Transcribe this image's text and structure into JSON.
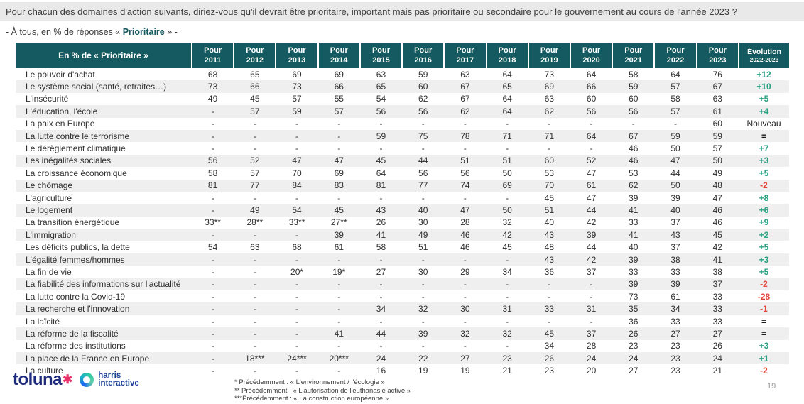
{
  "page": {
    "title": "Pour chacun des domaines d'action suivants, diriez-vous qu'il devrait être prioritaire, important mais pas prioritaire ou secondaire pour le gouvernement au cours de l'année 2023 ?",
    "subtitle_prefix": "- À tous, en % de réponses « ",
    "subtitle_highlight": "Prioritaire",
    "subtitle_suffix": " » -",
    "page_number": "19"
  },
  "chart_data": {
    "type": "table",
    "title": "Pour chacun des domaines d'action suivants, diriez-vous qu'il devrait être prioritaire, important mais pas prioritaire ou secondaire pour le gouvernement au cours de l'année 2023 ?",
    "subtitle": "- À tous, en % de réponses « Prioritaire » -",
    "columns": [
      "En % de « Prioritaire »",
      "Pour 2011",
      "Pour 2012",
      "Pour 2013",
      "Pour 2014",
      "Pour 2015",
      "Pour 2016",
      "Pour 2017",
      "Pour 2018",
      "Pour 2019",
      "Pour 2020",
      "Pour 2021",
      "Pour 2022",
      "Pour 2023",
      "Évolution 2022-2023"
    ],
    "rows": [
      {
        "label": "Le pouvoir d'achat",
        "values": [
          "68",
          "65",
          "69",
          "69",
          "63",
          "59",
          "63",
          "64",
          "73",
          "64",
          "58",
          "64",
          "76"
        ],
        "evolution": "+12"
      },
      {
        "label": "Le système social (santé, retraites…)",
        "values": [
          "73",
          "66",
          "73",
          "66",
          "65",
          "60",
          "67",
          "65",
          "69",
          "66",
          "59",
          "57",
          "67"
        ],
        "evolution": "+10"
      },
      {
        "label": "L'insécurité",
        "values": [
          "49",
          "45",
          "57",
          "55",
          "54",
          "62",
          "67",
          "64",
          "63",
          "60",
          "60",
          "58",
          "63"
        ],
        "evolution": "+5"
      },
      {
        "label": "L'éducation, l'école",
        "values": [
          "-",
          "57",
          "59",
          "57",
          "56",
          "56",
          "62",
          "64",
          "62",
          "56",
          "56",
          "57",
          "61"
        ],
        "evolution": "+4"
      },
      {
        "label": "La paix en Europe",
        "values": [
          "-",
          "-",
          "-",
          "-",
          "-",
          "-",
          "-",
          "-",
          "-",
          "-",
          "-",
          "-",
          "60"
        ],
        "evolution": "Nouveau"
      },
      {
        "label": "La lutte contre le terrorisme",
        "values": [
          "-",
          "-",
          "-",
          "-",
          "59",
          "75",
          "78",
          "71",
          "71",
          "64",
          "67",
          "59",
          "59"
        ],
        "evolution": "="
      },
      {
        "label": "Le dérèglement climatique",
        "values": [
          "-",
          "-",
          "-",
          "-",
          "-",
          "-",
          "-",
          "-",
          "-",
          "-",
          "46",
          "50",
          "57"
        ],
        "evolution": "+7"
      },
      {
        "label": "Les inégalités sociales",
        "values": [
          "56",
          "52",
          "47",
          "47",
          "45",
          "44",
          "51",
          "51",
          "60",
          "52",
          "46",
          "47",
          "50"
        ],
        "evolution": "+3"
      },
      {
        "label": "La croissance économique",
        "values": [
          "58",
          "57",
          "70",
          "69",
          "64",
          "56",
          "56",
          "50",
          "53",
          "47",
          "53",
          "44",
          "49"
        ],
        "evolution": "+5"
      },
      {
        "label": "Le chômage",
        "values": [
          "81",
          "77",
          "84",
          "83",
          "81",
          "77",
          "74",
          "69",
          "70",
          "61",
          "62",
          "50",
          "48"
        ],
        "evolution": "-2"
      },
      {
        "label": "L'agriculture",
        "values": [
          "-",
          "-",
          "-",
          "-",
          "-",
          "-",
          "-",
          "-",
          "45",
          "47",
          "39",
          "39",
          "47"
        ],
        "evolution": "+8"
      },
      {
        "label": "Le logement",
        "values": [
          "-",
          "49",
          "54",
          "45",
          "43",
          "40",
          "47",
          "50",
          "51",
          "44",
          "41",
          "40",
          "46"
        ],
        "evolution": "+6"
      },
      {
        "label": "La transition énergétique",
        "values": [
          "33**",
          "28**",
          "33**",
          "27**",
          "26",
          "30",
          "28",
          "32",
          "40",
          "42",
          "33",
          "37",
          "46"
        ],
        "evolution": "+9"
      },
      {
        "label": "L'immigration",
        "values": [
          "-",
          "-",
          "-",
          "39",
          "41",
          "49",
          "46",
          "42",
          "43",
          "39",
          "41",
          "43",
          "45"
        ],
        "evolution": "+2"
      },
      {
        "label": "Les déficits publics, la dette",
        "values": [
          "54",
          "63",
          "68",
          "61",
          "58",
          "51",
          "46",
          "45",
          "48",
          "44",
          "40",
          "37",
          "42"
        ],
        "evolution": "+5"
      },
      {
        "label": "L'égalité femmes/hommes",
        "values": [
          "-",
          "-",
          "-",
          "-",
          "-",
          "-",
          "-",
          "-",
          "43",
          "42",
          "39",
          "38",
          "41"
        ],
        "evolution": "+3"
      },
      {
        "label": "La fin de vie",
        "values": [
          "-",
          "-",
          "20*",
          "19*",
          "27",
          "30",
          "29",
          "34",
          "36",
          "37",
          "33",
          "33",
          "38"
        ],
        "evolution": "+5"
      },
      {
        "label": "La fiabilité des informations sur l'actualité",
        "values": [
          "-",
          "-",
          "-",
          "-",
          "-",
          "-",
          "-",
          "-",
          "-",
          "-",
          "39",
          "39",
          "37"
        ],
        "evolution": "-2"
      },
      {
        "label": "La lutte contre la Covid-19",
        "values": [
          "-",
          "-",
          "-",
          "-",
          "-",
          "-",
          "-",
          "-",
          "-",
          "-",
          "73",
          "61",
          "33"
        ],
        "evolution": "-28"
      },
      {
        "label": "La recherche et l'innovation",
        "values": [
          "-",
          "-",
          "-",
          "-",
          "34",
          "32",
          "30",
          "31",
          "33",
          "31",
          "35",
          "34",
          "33"
        ],
        "evolution": "-1"
      },
      {
        "label": "La laïcité",
        "values": [
          "-",
          "-",
          "-",
          "-",
          "-",
          "-",
          "-",
          "-",
          "-",
          "-",
          "36",
          "33",
          "33"
        ],
        "evolution": "="
      },
      {
        "label": "La réforme de la fiscalité",
        "values": [
          "-",
          "-",
          "-",
          "41",
          "44",
          "39",
          "32",
          "32",
          "45",
          "37",
          "26",
          "27",
          "27"
        ],
        "evolution": "="
      },
      {
        "label": "La réforme des institutions",
        "values": [
          "-",
          "-",
          "-",
          "-",
          "-",
          "-",
          "-",
          "-",
          "34",
          "28",
          "23",
          "23",
          "26"
        ],
        "evolution": "+3"
      },
      {
        "label": "La place de la France en Europe",
        "values": [
          "-",
          "18***",
          "24***",
          "20***",
          "24",
          "22",
          "27",
          "23",
          "26",
          "24",
          "24",
          "23",
          "24"
        ],
        "evolution": "+1"
      },
      {
        "label": "La culture",
        "values": [
          "-",
          "-",
          "-",
          "-",
          "16",
          "19",
          "19",
          "21",
          "23",
          "20",
          "27",
          "23",
          "21"
        ],
        "evolution": "-2"
      }
    ]
  },
  "footnotes": [
    "* Précédemment : « L'environnement / l'écologie »",
    "** Précédemment : « L'autorisation de l'euthanasie active »",
    "***Précédemment : « La construction européenne »"
  ],
  "footer": {
    "toluna_word": "toluna",
    "toluna_star": "✱",
    "harris_line1": "harris",
    "harris_line2": "interactive"
  },
  "colors": {
    "header_bg": "#155a60",
    "accent_teal": "#16585e",
    "positive": "#2aa183",
    "negative": "#e0463e",
    "title_bar_bg": "#e9e9e9",
    "row_stripe": "#efefef"
  }
}
